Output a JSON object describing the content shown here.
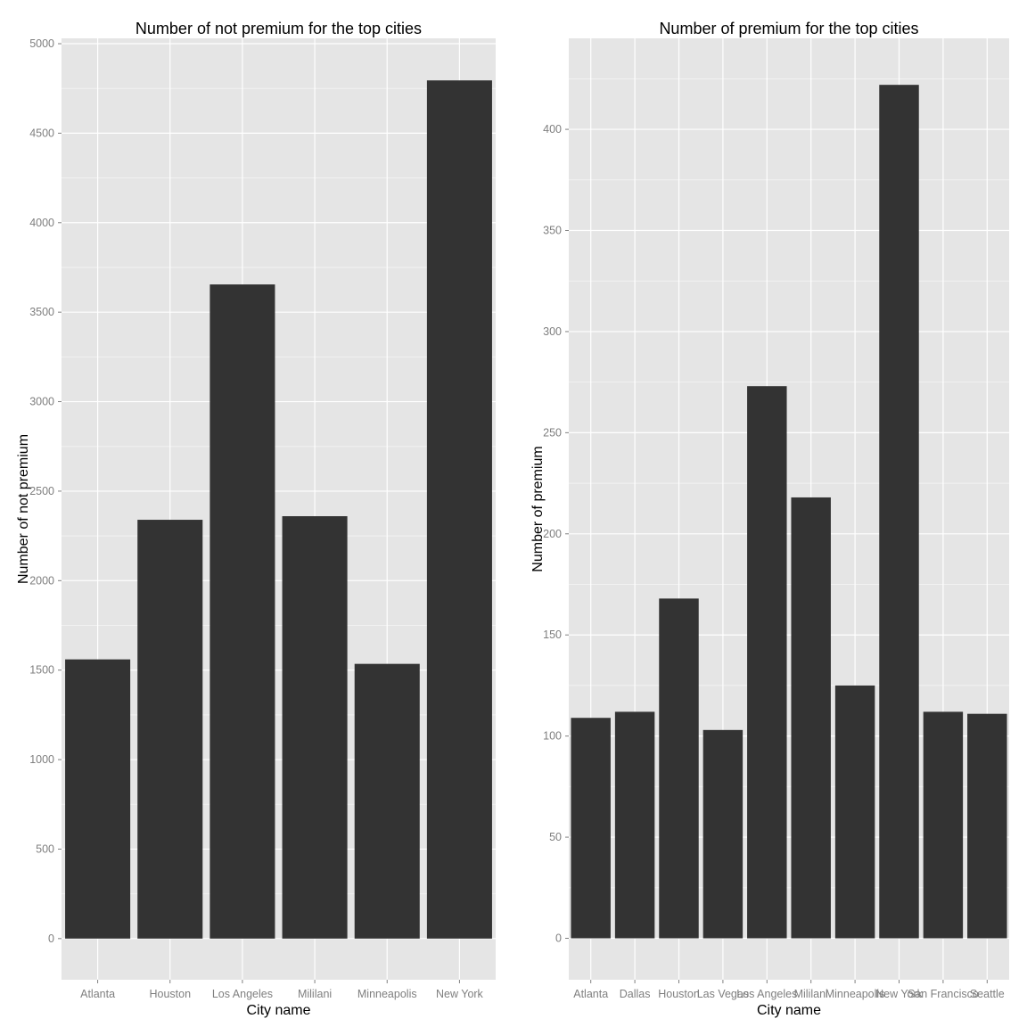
{
  "chart_data": [
    {
      "type": "bar",
      "title": "Number of not premium for the top cities",
      "xlabel": "City name",
      "ylabel": "Number of not premium",
      "categories": [
        "Atlanta",
        "Houston",
        "Los Angeles",
        "Mililani",
        "Minneapolis",
        "New York"
      ],
      "values": [
        1560,
        2340,
        3655,
        2360,
        1535,
        4795
      ],
      "ylim": [
        -230,
        5030
      ],
      "yticks": [
        0,
        500,
        1000,
        1500,
        2000,
        2500,
        3000,
        3500,
        4000,
        4500,
        5000
      ],
      "ytick_labels": [
        "0",
        "500",
        "1000",
        "1500",
        "2000",
        "2500",
        "3000",
        "3500",
        "4000",
        "4500",
        "5000"
      ],
      "grid": true,
      "legend": "none"
    },
    {
      "type": "bar",
      "title": "Number of premium for the top cities",
      "xlabel": "City name",
      "ylabel": "Number of premium",
      "categories": [
        "Atlanta",
        "Dallas",
        "Houston",
        "Las Vegas",
        "Los Angeles",
        "Mililani",
        "Minneapolis",
        "New York",
        "San Francisco",
        "Seattle"
      ],
      "values": [
        109,
        112,
        168,
        103,
        273,
        218,
        125,
        422,
        112,
        111
      ],
      "ylim": [
        -20.5,
        445
      ],
      "yticks": [
        0,
        50,
        100,
        150,
        200,
        250,
        300,
        350,
        400
      ],
      "ytick_labels": [
        "0",
        "50",
        "100",
        "150",
        "200",
        "250",
        "300",
        "350",
        "400"
      ],
      "grid": true,
      "legend": "none"
    }
  ],
  "colors": {
    "panel_background": "#e5e5e5",
    "grid_major": "#ffffff",
    "grid_minor": "#f2f2f2",
    "bar_fill": "#333333",
    "tick_text": "#7f7f7f",
    "tick_mark": "#7f7f7f"
  }
}
